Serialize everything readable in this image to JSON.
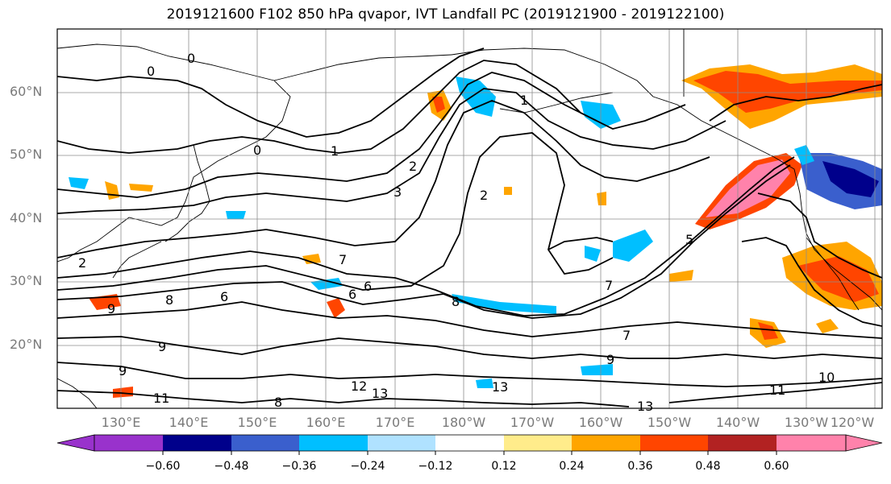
{
  "title": "2019121600 F102 850 hPa qvapor, IVT Landfall PC (2019121900 - 2019122100)",
  "lat_labels": [
    "60°N",
    "50°N",
    "40°N",
    "30°N",
    "20°N"
  ],
  "lon_labels": [
    "130°E",
    "140°E",
    "150°E",
    "160°E",
    "170°E",
    "180°W",
    "170°W",
    "160°W",
    "150°W",
    "140°W",
    "130°W",
    "120°W"
  ],
  "colorbar": {
    "colors": [
      "#9932cc",
      "#00008b",
      "#3a5fcd",
      "#00bfff",
      "#b0e2ff",
      "#ffffff",
      "#ffec8b",
      "#ffa500",
      "#ff4500",
      "#b22222",
      "#ff82ab"
    ],
    "tick_labels": [
      "−0.60",
      "−0.48",
      "−0.36",
      "−0.24",
      "−0.12",
      "0.12",
      "0.24",
      "0.36",
      "0.48",
      "0.60"
    ]
  },
  "contour_labels": [
    "0",
    "0",
    "0",
    "1",
    "1",
    "2",
    "2",
    "2",
    "3",
    "5",
    "6",
    "6",
    "7",
    "7",
    "7",
    "8",
    "8",
    "9",
    "9",
    "9",
    "9",
    "10",
    "11",
    "11",
    "12",
    "13",
    "13",
    "13",
    "6",
    "8"
  ]
}
